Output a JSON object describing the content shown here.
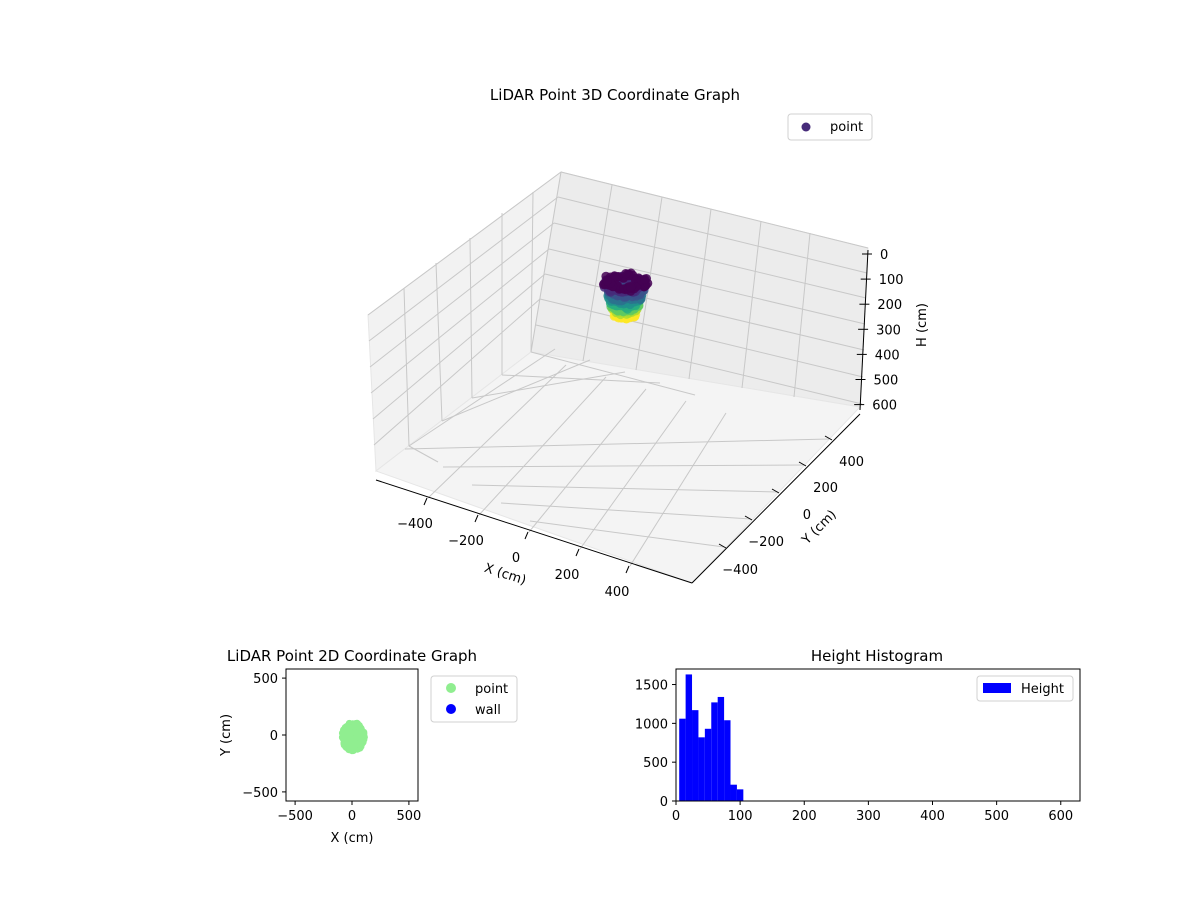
{
  "chart_data": [
    {
      "type": "scatter",
      "title": "LiDAR Point 3D Coordinate Graph",
      "xlabel": "X (cm)",
      "ylabel": "Y (cm)",
      "zlabel": "H (cm)",
      "xlim": [
        -500,
        500
      ],
      "ylim": [
        -500,
        500
      ],
      "zlim": [
        600,
        0
      ],
      "x_ticks": [
        "−400",
        "−200",
        "0",
        "200",
        "400"
      ],
      "y_ticks": [
        "400",
        "200",
        "0",
        "−200",
        "−400"
      ],
      "z_ticks": [
        "0",
        "100",
        "200",
        "300",
        "400",
        "500",
        "600"
      ],
      "legend": [
        {
          "label": "point",
          "color": "#472c7a"
        }
      ],
      "legend_position": "top-right",
      "colormap": "viridis",
      "cluster": {
        "x_range": [
          -80,
          110
        ],
        "y_range": [
          -80,
          110
        ],
        "h_range": [
          0,
          130
        ]
      },
      "grid": true
    },
    {
      "type": "scatter",
      "title": "LiDAR Point 2D Coordinate Graph",
      "xlabel": "X (cm)",
      "ylabel": "Y (cm)",
      "xlim": [
        -580,
        580
      ],
      "ylim": [
        -580,
        580
      ],
      "x_ticks": [
        -500,
        0,
        500
      ],
      "y_ticks": [
        500,
        0,
        -500
      ],
      "x_tick_labels": [
        "−500",
        "0",
        "500"
      ],
      "y_tick_labels": [
        "500",
        "0",
        "−500"
      ],
      "series": [
        {
          "name": "point",
          "color": "#90ee90"
        },
        {
          "name": "wall",
          "color": "#0000ff"
        }
      ],
      "legend_position": "outside-right",
      "cluster": {
        "x_range": [
          -90,
          110
        ],
        "y_range": [
          -140,
          110
        ]
      }
    },
    {
      "type": "bar",
      "title": "Height Histogram",
      "xlim": [
        0,
        630
      ],
      "ylim": [
        0,
        1700
      ],
      "x_ticks": [
        0,
        100,
        200,
        300,
        400,
        500,
        600
      ],
      "y_ticks": [
        0,
        500,
        1000,
        1500
      ],
      "bin_width": 10,
      "bin_starts": [
        5,
        15,
        25,
        35,
        45,
        55,
        65,
        75,
        85,
        95,
        105,
        115
      ],
      "values": [
        1060,
        1630,
        1170,
        820,
        930,
        1270,
        1340,
        1040,
        210,
        150,
        0,
        0
      ],
      "series": [
        {
          "name": "Height",
          "color": "#0000ff"
        }
      ],
      "legend_position": "top-right"
    }
  ]
}
